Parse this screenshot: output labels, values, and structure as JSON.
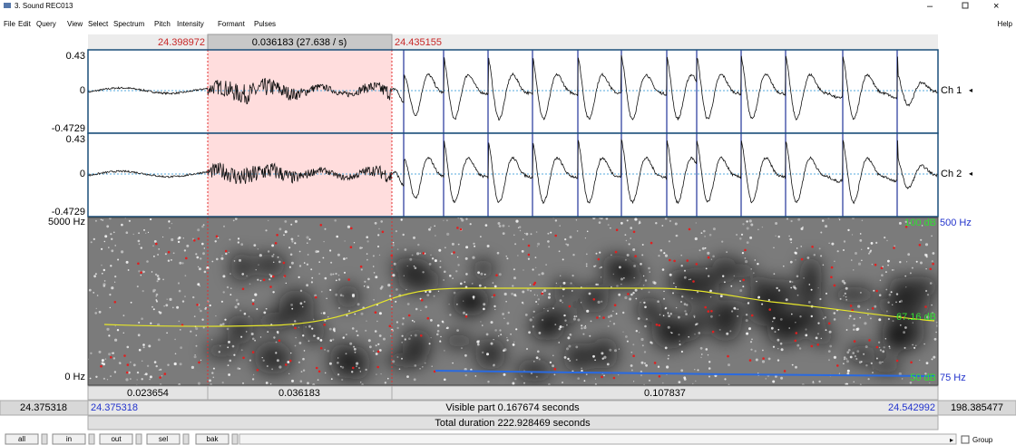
{
  "window": {
    "title": "3. Sound REC013",
    "menu": [
      "File",
      "Edit",
      "Query",
      "View",
      "Select",
      "Spectrum",
      "Pitch",
      "Intensity",
      "Formant",
      "Pulses"
    ],
    "help": "Help"
  },
  "selection": {
    "start": "24.398972",
    "duration": "0.036183 (27.638 / s)",
    "end": "24.435155"
  },
  "channels": [
    {
      "max": "0.43",
      "zero": "0",
      "min": "-0.4729",
      "label": "Ch 1"
    },
    {
      "max": "0.43",
      "zero": "0",
      "min": "-0.4729",
      "label": "Ch 2"
    }
  ],
  "spectrogram": {
    "top": "5000 Hz",
    "bottom": "0 Hz",
    "max_db": "100 dB",
    "pitch_top": "500 Hz",
    "db_value": "67.16 dB",
    "min_db": "50 dB",
    "pitch_bottom": "75 Hz"
  },
  "durations": [
    "0.023654",
    "0.036183",
    "0.107837"
  ],
  "time_bar": {
    "left_outer": "24.375318",
    "left": "24.375318",
    "visible": "Visible part 0.167674 seconds",
    "right": "24.542992",
    "right_outer": "198.385477"
  },
  "total": "Total duration 222.928469 seconds",
  "buttons": [
    "all",
    "in",
    "out",
    "sel",
    "bak"
  ],
  "group": "Group"
}
